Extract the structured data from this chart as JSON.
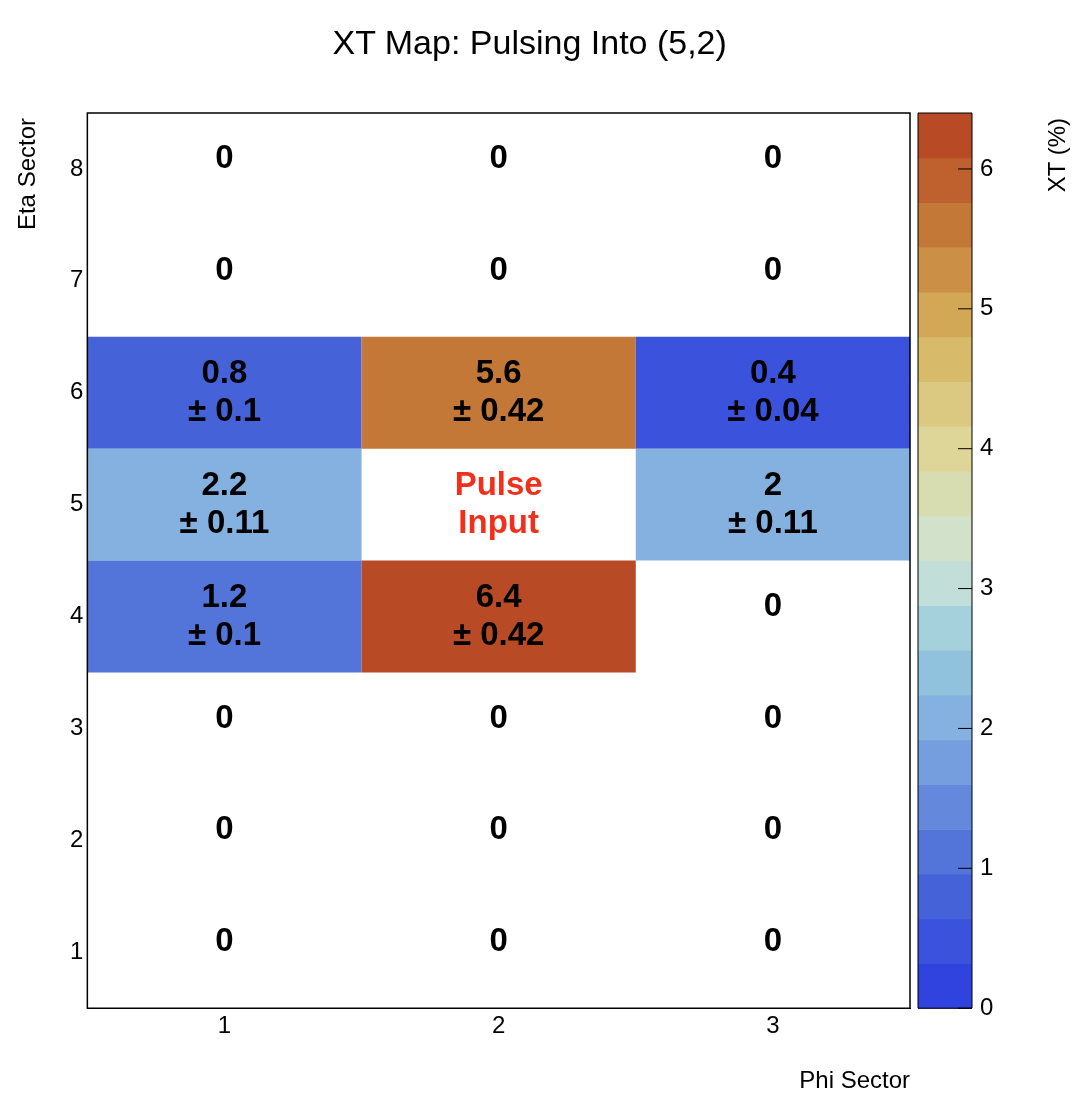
{
  "chart_data": {
    "type": "heatmap",
    "title": "XT Map: Pulsing Into (5,2)",
    "xlabel": "Phi Sector",
    "ylabel": "Eta Sector",
    "clabel": "XT (%)",
    "categories": [
      "1",
      "2",
      "3"
    ],
    "y_categories": [
      "8",
      "7",
      "6",
      "5",
      "4",
      "3",
      "2",
      "1"
    ],
    "cells": [
      [
        null,
        null,
        null
      ],
      [
        null,
        null,
        null
      ],
      [
        0.8,
        5.6,
        0.4
      ],
      [
        2.2,
        null,
        2
      ],
      [
        1.2,
        6.4,
        null
      ],
      [
        null,
        null,
        null
      ],
      [
        null,
        null,
        null
      ],
      [
        null,
        null,
        null
      ]
    ],
    "cell_labels": [
      [
        "0",
        "0",
        "0"
      ],
      [
        "0",
        "0",
        "0"
      ],
      [
        "0.8\n± 0.1",
        "5.6\n± 0.42",
        "0.4\n± 0.04"
      ],
      [
        "2.2\n± 0.11",
        "Pulse\nInput",
        "2\n± 0.11"
      ],
      [
        "1.2\n± 0.1",
        "6.4\n± 0.42",
        "0"
      ],
      [
        "0",
        "0",
        "0"
      ],
      [
        "0",
        "0",
        "0"
      ],
      [
        "0",
        "0",
        "0"
      ]
    ],
    "clim": [
      0,
      6.4
    ],
    "cticks": [
      0,
      1,
      2,
      3,
      4,
      5,
      6
    ],
    "grid": false,
    "legend": false
  }
}
